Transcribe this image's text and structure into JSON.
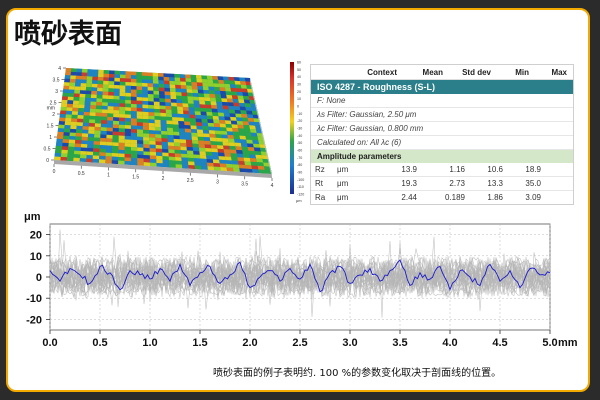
{
  "page": {
    "title": "喷砂表面",
    "caption": "喷砂表面的例子表明约. 100 %的参数变化取决于剖面线的位置。"
  },
  "surface": {
    "x_ticks": [
      "0",
      "0.5",
      "1",
      "1.5",
      "2",
      "2.5",
      "3",
      "3.5",
      "4"
    ],
    "y_ticks": [
      "0",
      "0.5",
      "1",
      "1.5",
      "2",
      "2.5",
      "3",
      "3.5",
      "4"
    ],
    "axis_unit": "mm",
    "colorbar_ticks": [
      "60",
      "50",
      "40",
      "30",
      "20",
      "10",
      "0",
      "-10",
      "-20",
      "-30",
      "-40",
      "-50",
      "-60",
      "-70",
      "-80",
      "-90",
      "-100",
      "-110",
      "-120"
    ],
    "colorbar_unit": "μm"
  },
  "table": {
    "columns": [
      "",
      "",
      "Context",
      "Mean",
      "Std dev",
      "Min",
      "Max"
    ],
    "standard": "ISO 4287 - Roughness (S-L)",
    "info_lines": [
      "F: None",
      "λs Filter: Gaussian, 2.50 μm",
      "λc Filter: Gaussian, 0.800 mm",
      "Calculated on: All λc (6)"
    ],
    "section": "Amplitude parameters",
    "rows": [
      {
        "name": "Rz",
        "unit": "μm",
        "context": "",
        "mean": "13.9",
        "std": "1.16",
        "min": "10.6",
        "max": "18.9"
      },
      {
        "name": "Rt",
        "unit": "μm",
        "context": "",
        "mean": "19.3",
        "std": "2.73",
        "min": "13.3",
        "max": "35.0"
      },
      {
        "name": "Ra",
        "unit": "μm",
        "context": "",
        "mean": "2.44",
        "std": "0.189",
        "min": "1.86",
        "max": "3.09"
      }
    ]
  },
  "chart_data": {
    "type": "line",
    "ylabel": "μm",
    "xlabel": "mm",
    "xlim": [
      0,
      5
    ],
    "ylim": [
      -25,
      25
    ],
    "x_ticks": [
      "0.0",
      "0.5",
      "1.0",
      "1.5",
      "2.0",
      "2.5",
      "3.0",
      "3.5",
      "4.0",
      "4.5",
      "5.0"
    ],
    "y_ticks": [
      "20",
      "10",
      "0",
      "-10",
      "-20"
    ],
    "grid": true,
    "series": [
      {
        "color": "#1a1acc",
        "x": [
          0,
          0.1,
          0.2,
          0.3,
          0.4,
          0.5,
          0.6,
          0.7,
          0.8,
          0.9,
          1.0,
          1.1,
          1.2,
          1.3,
          1.4,
          1.5,
          1.6,
          1.7,
          1.8,
          1.9,
          2.0,
          2.1,
          2.2,
          2.3,
          2.4,
          2.5,
          2.6,
          2.7,
          2.8,
          2.9,
          3.0,
          3.1,
          3.2,
          3.3,
          3.4,
          3.5,
          3.6,
          3.7,
          3.8,
          3.9,
          4.0,
          4.1,
          4.2,
          4.3,
          4.4,
          4.5,
          4.6,
          4.7,
          4.8,
          4.9,
          5.0
        ],
        "y": [
          3,
          -2,
          4,
          1,
          -3,
          5,
          2,
          -6,
          3,
          1,
          -1,
          4,
          -2,
          6,
          -4,
          2,
          5,
          -3,
          1,
          7,
          -5,
          0,
          3,
          -2,
          4,
          -1,
          6,
          -7,
          2,
          5,
          -3,
          1,
          4,
          -2,
          3,
          8,
          -4,
          2,
          -1,
          5,
          -6,
          3,
          0,
          -4,
          6,
          -2,
          3,
          -5,
          4,
          1,
          2
        ]
      }
    ]
  },
  "colors": {
    "frame": "#f2a900",
    "band": "#2a7f8a",
    "section": "#d4e7c9",
    "series": "#1a1acc",
    "background_profiles": "#b5b5b5"
  }
}
